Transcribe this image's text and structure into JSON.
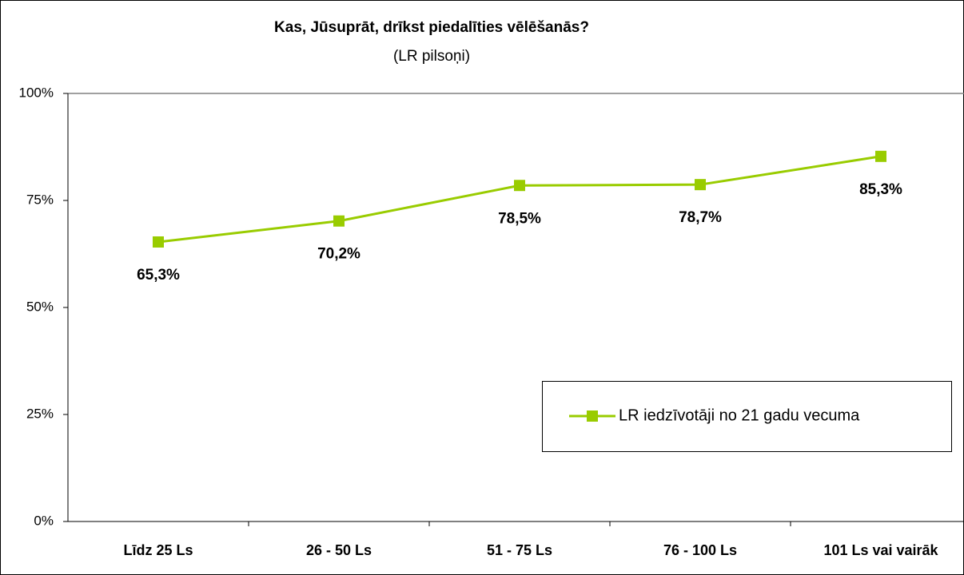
{
  "chart_data": {
    "type": "line",
    "title": "Kas, Jūsuprāt, drīkst piedalīties vēlēšanās?",
    "subtitle": "(LR pilsoņi)",
    "categories": [
      "Līdz 25 Ls",
      "26 - 50 Ls",
      "51 - 75 Ls",
      "76 - 100 Ls",
      "101 Ls vai vairāk"
    ],
    "series": [
      {
        "name": "LR iedzīvotāji no 21 gadu vecuma",
        "color": "#99cc00",
        "values": [
          65.3,
          70.2,
          78.5,
          78.7,
          85.3
        ],
        "value_labels": [
          "65,3%",
          "70,2%",
          "78,5%",
          "78,7%",
          "85,3%"
        ]
      }
    ],
    "ylim": [
      0,
      100
    ],
    "yticks": [
      {
        "value": 0,
        "label": "0%"
      },
      {
        "value": 25,
        "label": "25%"
      },
      {
        "value": 50,
        "label": "50%"
      },
      {
        "value": 75,
        "label": "75%"
      },
      {
        "value": 100,
        "label": "100%"
      }
    ],
    "grid": false,
    "legend": "right"
  }
}
